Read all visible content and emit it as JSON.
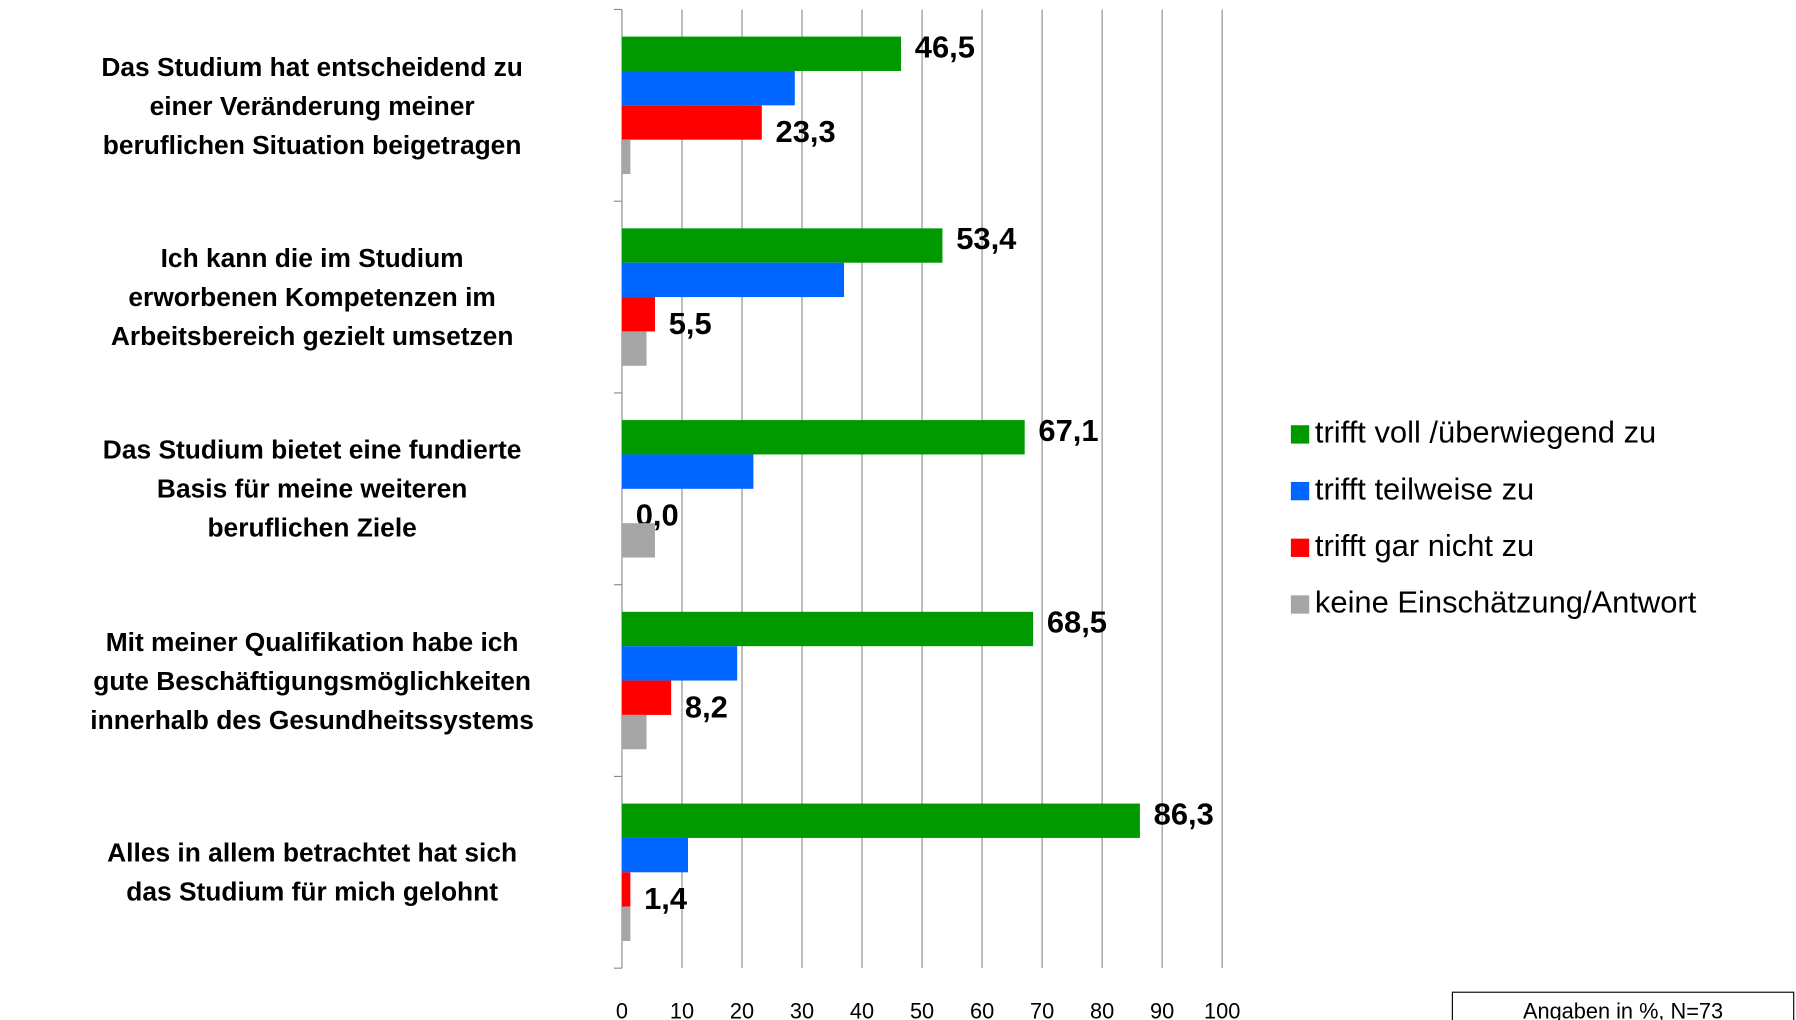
{
  "chart_data": {
    "type": "bar",
    "orientation": "horizontal",
    "categories": [
      "Das Studium hat entscheidend zu\neiner Veränderung meiner\nberuflichen Situation beigetragen",
      "Ich kann die im Studium\nerworbenen Kompetenzen im\nArbeitsbereich gezielt umsetzen",
      "Das Studium bietet eine fundierte\nBasis für meine weiteren\nberuflichen Ziele",
      "Mit meiner Qualifikation habe ich\ngute Beschäftigungsmöglichkeiten\ninnerhalb des Gesundheitssystems",
      "Alles in allem betrachtet hat sich\ndas Studium für mich gelohnt"
    ],
    "series": [
      {
        "name": "trifft voll /überwiegend zu",
        "color": "#009900",
        "values": [
          46.5,
          53.4,
          67.1,
          68.5,
          86.3
        ],
        "value_labels": [
          "46,5",
          "53,4",
          "67,1",
          "68,5",
          "86,3"
        ]
      },
      {
        "name": "trifft teilweise zu",
        "color": "#0066ff",
        "values": [
          28.8,
          37.0,
          21.9,
          19.2,
          11.0
        ]
      },
      {
        "name": "trifft gar nicht zu",
        "color": "#ff0000",
        "values": [
          23.3,
          5.5,
          0.0,
          8.2,
          1.4
        ],
        "value_labels": [
          "23,3",
          "5,5",
          "0,0",
          "8,2",
          "1,4"
        ]
      },
      {
        "name": "keine Einschätzung/Antwort",
        "color": "#a6a6a6",
        "values": [
          1.4,
          4.1,
          5.5,
          4.1,
          1.4
        ]
      }
    ],
    "xlim": [
      0,
      100
    ],
    "xticks": [
      0,
      10,
      20,
      30,
      40,
      50,
      60,
      70,
      80,
      90,
      100
    ],
    "grid": true,
    "legend": "right",
    "note": "Angaben in %, N=73"
  }
}
